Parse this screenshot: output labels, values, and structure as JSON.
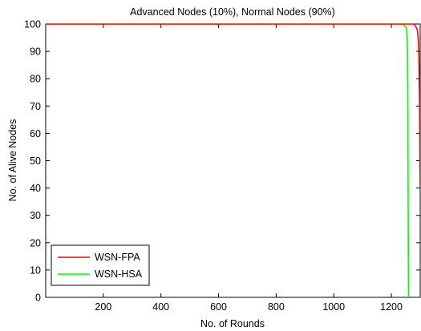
{
  "chart_data": {
    "type": "line",
    "title": "Advanced Nodes (10%), Normal Nodes (90%)",
    "xlabel": "No. of Rounds",
    "ylabel": "No. of Alive Nodes",
    "xlim": [
      0,
      1300
    ],
    "ylim": [
      0,
      100
    ],
    "xticks": [
      200,
      400,
      600,
      800,
      1000,
      1200
    ],
    "yticks": [
      0,
      10,
      20,
      30,
      40,
      50,
      60,
      70,
      80,
      90,
      100
    ],
    "grid": false,
    "legend_position": "bottom-left",
    "series": [
      {
        "name": "WSN-FPA",
        "color": "#ff0000",
        "x": [
          0,
          1270,
          1278,
          1285,
          1290,
          1293,
          1295,
          1296,
          1297,
          1298,
          1299,
          1300
        ],
        "y": [
          100,
          100,
          100,
          99,
          98,
          95,
          90,
          85,
          78,
          70,
          55,
          40
        ]
      },
      {
        "name": "WSN-HSA",
        "color": "#00ff00",
        "x": [
          0,
          1240,
          1245,
          1250,
          1252,
          1254,
          1255,
          1256,
          1257,
          1258,
          1259,
          1260,
          1260
        ],
        "y": [
          100,
          100,
          99.5,
          99,
          98.5,
          97,
          95,
          90,
          70,
          40,
          15,
          2,
          0
        ]
      }
    ]
  }
}
